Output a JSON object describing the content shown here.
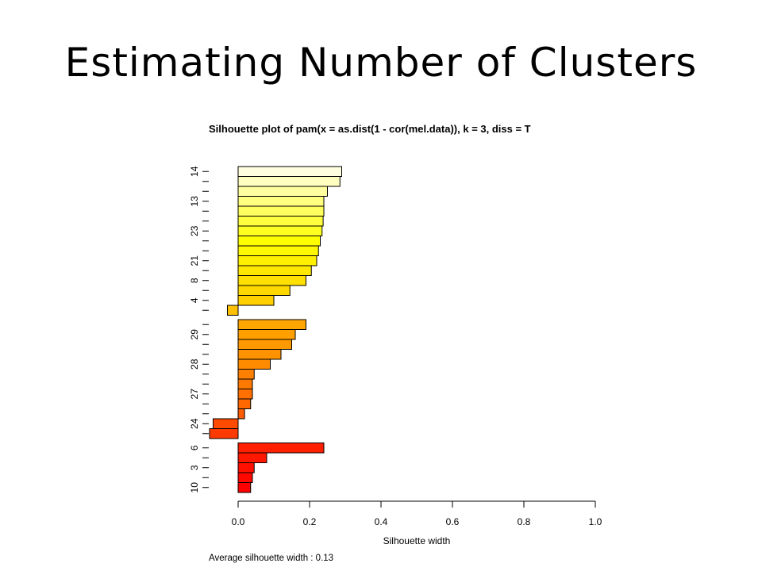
{
  "slide": {
    "title": "Estimating Number of Clusters"
  },
  "chart_data": {
    "type": "bar",
    "orientation": "horizontal",
    "title": "Silhouette plot of  pam(x = as.dist(1 - cor(mel.data)), k = 3, diss = T",
    "xlabel": "Silhouette width",
    "xlim": [
      0.0,
      1.0
    ],
    "xticks": [
      "0.0",
      "0.2",
      "0.4",
      "0.6",
      "0.8",
      "1.0"
    ],
    "average_label": "Average silhouette width :  0.13",
    "clusters": [
      {
        "id": 1,
        "values": [
          0.29,
          0.285,
          0.25,
          0.24,
          0.24,
          0.238,
          0.235,
          0.23,
          0.225,
          0.22,
          0.205,
          0.19,
          0.145,
          0.1,
          -0.03
        ],
        "colors": [
          "#FFFFE0",
          "#FFFFBF",
          "#FFFF9F",
          "#FFFF80",
          "#FFFF60",
          "#FFFF40",
          "#FFFF20",
          "#FFFF00",
          "#FFF800",
          "#FFF000",
          "#FFE800",
          "#FFE000",
          "#FFD800",
          "#FFD000",
          "#FFC000"
        ],
        "labels": [
          "14",
          "",
          "",
          "13",
          "",
          "",
          "23",
          "",
          "",
          "21",
          "",
          "8",
          "",
          "4",
          ""
        ]
      },
      {
        "id": 2,
        "values": [
          0.19,
          0.16,
          0.15,
          0.12,
          0.09,
          0.045,
          0.04,
          0.04,
          0.035,
          0.018,
          -0.07,
          -0.08
        ],
        "colors": [
          "#FFA500",
          "#FF9F00",
          "#FF9900",
          "#FF9200",
          "#FF8C00",
          "#FF8000",
          "#FF7800",
          "#FF7000",
          "#FF6800",
          "#FF5C00",
          "#FF4A00",
          "#FF3A00"
        ],
        "labels": [
          "",
          "29",
          "",
          "",
          "28",
          "",
          "",
          "27",
          "",
          "",
          "24",
          ""
        ]
      },
      {
        "id": 3,
        "values": [
          0.24,
          0.08,
          0.045,
          0.04,
          0.035
        ],
        "colors": [
          "#FF2000",
          "#FF1800",
          "#FF1000",
          "#FF0800",
          "#FF0000"
        ],
        "labels": [
          "6",
          "",
          "3",
          "",
          "10"
        ]
      }
    ]
  }
}
